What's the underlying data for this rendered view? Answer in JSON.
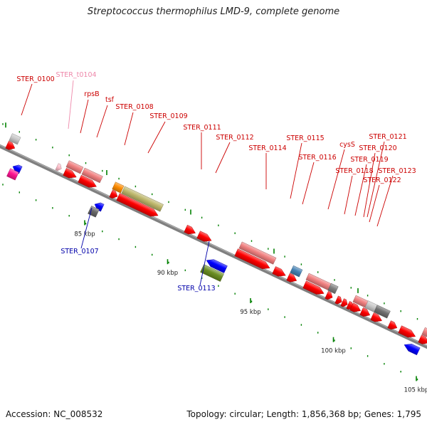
{
  "title": "Streptococcus thermophilus LMD-9, complete genome",
  "accession": "Accession: NC_008532",
  "topology": "Topology: circular; Length: 1,856,368 bp; Genes: 1,795",
  "scale_unit": "kbp",
  "ticks": [
    {
      "label": "85 kbp",
      "kbp": 85
    },
    {
      "label": "90 kbp",
      "kbp": 90
    },
    {
      "label": "95 kbp",
      "kbp": 95
    },
    {
      "label": "100 kbp",
      "kbp": 100
    },
    {
      "label": "105 kbp",
      "kbp": 105
    }
  ],
  "colors": {
    "cds": "#ff0000",
    "gene": "#f08080",
    "trna": "#ffc0cb",
    "backbone": "#808080",
    "tick": "#008000",
    "label_forward": "#cc0000",
    "label_reverse": "#0000aa",
    "label_trna": "#ee88aa"
  },
  "gene_labels": [
    {
      "name": "STER_0100",
      "strand": "forward"
    },
    {
      "name": "STER_t0104",
      "strand": "trna"
    },
    {
      "name": "rpsB",
      "strand": "forward"
    },
    {
      "name": "tsf",
      "strand": "forward"
    },
    {
      "name": "STER_0108",
      "strand": "forward"
    },
    {
      "name": "STER_0109",
      "strand": "forward"
    },
    {
      "name": "STER_0111",
      "strand": "forward"
    },
    {
      "name": "STER_0112",
      "strand": "forward"
    },
    {
      "name": "STER_0114",
      "strand": "forward"
    },
    {
      "name": "STER_0115",
      "strand": "forward"
    },
    {
      "name": "STER_0116",
      "strand": "forward"
    },
    {
      "name": "cysS",
      "strand": "forward"
    },
    {
      "name": "STER_0121",
      "strand": "forward"
    },
    {
      "name": "STER_0120",
      "strand": "forward"
    },
    {
      "name": "STER_0119",
      "strand": "forward"
    },
    {
      "name": "STER_0118",
      "strand": "forward"
    },
    {
      "name": "STER_0123",
      "strand": "forward"
    },
    {
      "name": "STER_0122",
      "strand": "forward"
    },
    {
      "name": "STER_0107",
      "strand": "reverse"
    },
    {
      "name": "STER_0113",
      "strand": "reverse"
    }
  ]
}
